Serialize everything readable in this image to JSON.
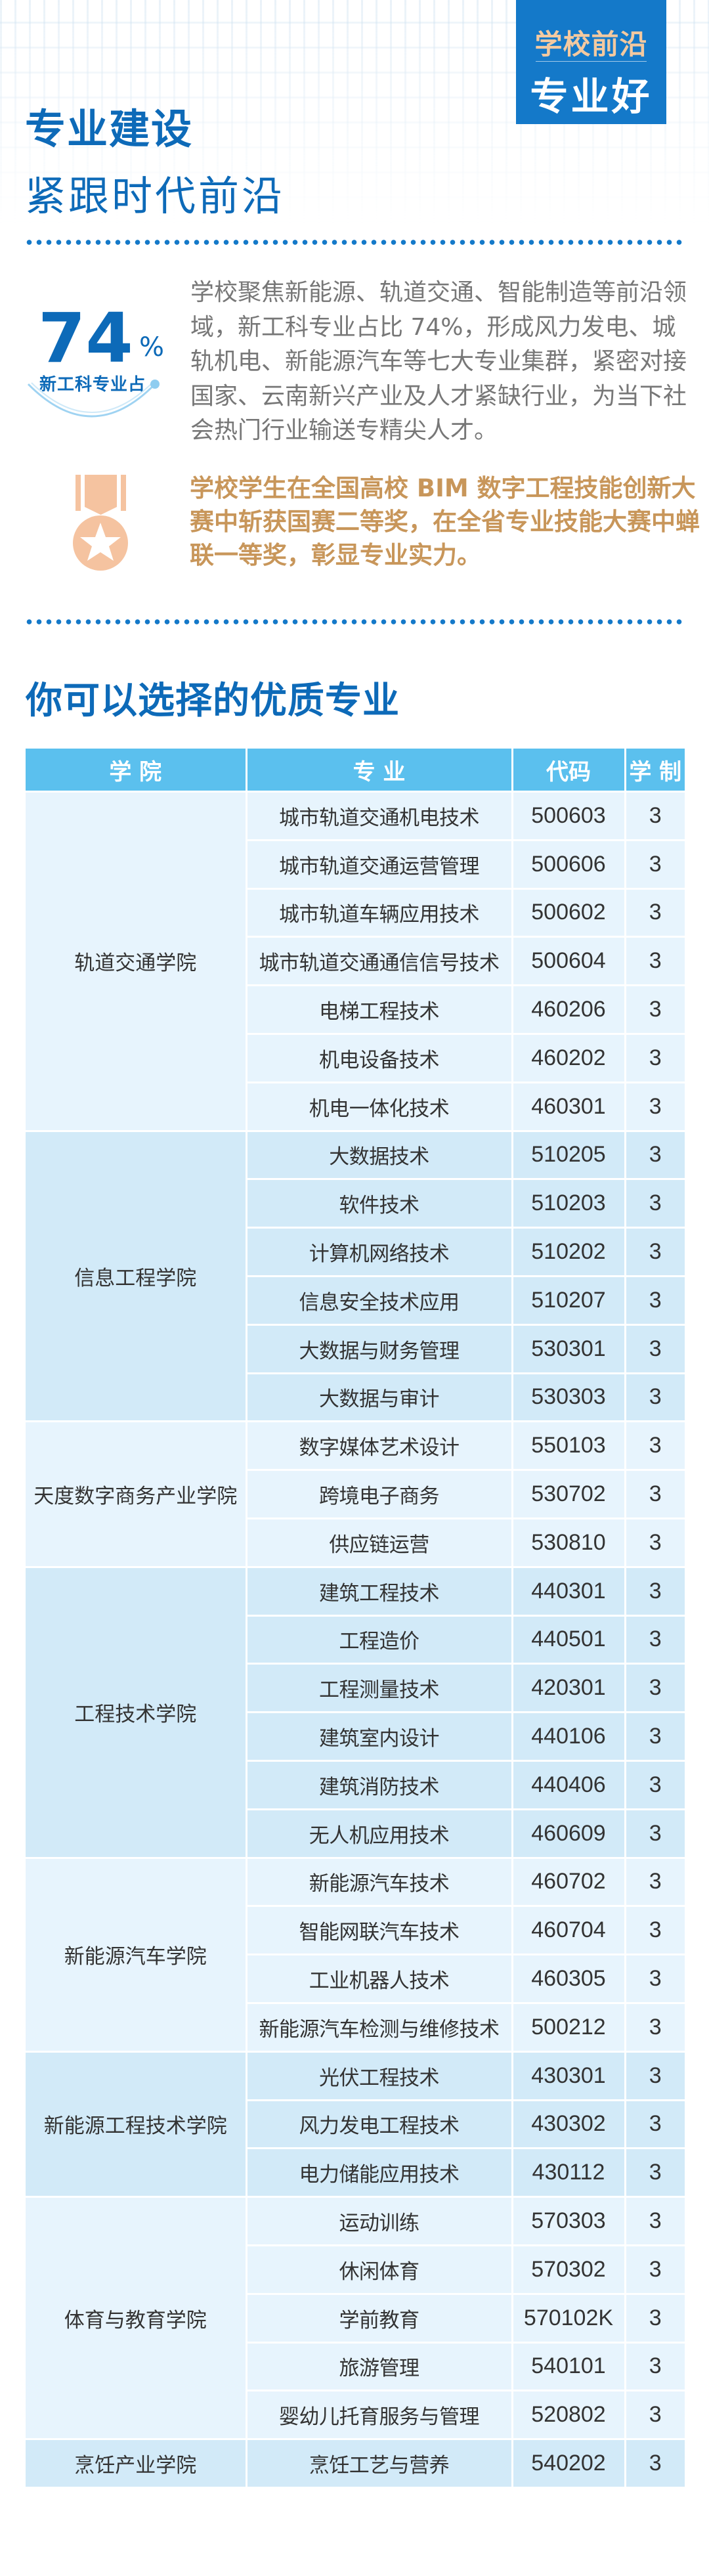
{
  "badge": {
    "line1": "学校前沿",
    "line2": "专业好"
  },
  "section": {
    "title": "专业建设",
    "subtitle": "紧跟时代前沿"
  },
  "stat": {
    "value": "74",
    "unit": "%",
    "label": "新工科专业占"
  },
  "intro_paragraph": "学校聚焦新能源、轨道交通、智能制造等前沿领域，新工科专业占比 74%，形成风力发电、城轨机电、新能源汽车等七大专业集群，紧密对接国家、云南新兴产业及人才紧缺行业，为当下社会热门行业输送专精尖人才。",
  "award_paragraph": "学校学生在全国高校 BIM 数字工程技能创新大赛中斩获国赛二等奖，在全省专业技能大赛中蝉联一等奖，彰显专业实力。",
  "colors": {
    "primary": "#0d6ab8",
    "badge": "#1479c9",
    "accent": "#c8965a",
    "table_header": "#5bc0ee",
    "row_light": "#e7f4fd",
    "row_dark": "#d2eaf8"
  },
  "icons": {
    "medal": "medal-icon"
  },
  "majors_heading": "你可以选择的优质专业",
  "table": {
    "headers": [
      "学 院",
      "专 业",
      "代码",
      "学 制"
    ],
    "colleges": [
      {
        "name": "轨道交通学院",
        "majors": [
          {
            "name": "城市轨道交通机电技术",
            "code": "500603",
            "years": "3"
          },
          {
            "name": "城市轨道交通运营管理",
            "code": "500606",
            "years": "3"
          },
          {
            "name": "城市轨道车辆应用技术",
            "code": "500602",
            "years": "3"
          },
          {
            "name": "城市轨道交通通信信号技术",
            "code": "500604",
            "years": "3"
          },
          {
            "name": "电梯工程技术",
            "code": "460206",
            "years": "3"
          },
          {
            "name": "机电设备技术",
            "code": "460202",
            "years": "3"
          },
          {
            "name": "机电一体化技术",
            "code": "460301",
            "years": "3"
          }
        ]
      },
      {
        "name": "信息工程学院",
        "majors": [
          {
            "name": "大数据技术",
            "code": "510205",
            "years": "3"
          },
          {
            "name": "软件技术",
            "code": "510203",
            "years": "3"
          },
          {
            "name": "计算机网络技术",
            "code": "510202",
            "years": "3"
          },
          {
            "name": "信息安全技术应用",
            "code": "510207",
            "years": "3"
          },
          {
            "name": "大数据与财务管理",
            "code": "530301",
            "years": "3"
          },
          {
            "name": "大数据与审计",
            "code": "530303",
            "years": "3"
          }
        ]
      },
      {
        "name": "天度数字商务产业学院",
        "majors": [
          {
            "name": "数字媒体艺术设计",
            "code": "550103",
            "years": "3"
          },
          {
            "name": "跨境电子商务",
            "code": "530702",
            "years": "3"
          },
          {
            "name": "供应链运营",
            "code": "530810",
            "years": "3"
          }
        ]
      },
      {
        "name": "工程技术学院",
        "majors": [
          {
            "name": "建筑工程技术",
            "code": "440301",
            "years": "3"
          },
          {
            "name": "工程造价",
            "code": "440501",
            "years": "3"
          },
          {
            "name": "工程测量技术",
            "code": "420301",
            "years": "3"
          },
          {
            "name": "建筑室内设计",
            "code": "440106",
            "years": "3"
          },
          {
            "name": "建筑消防技术",
            "code": "440406",
            "years": "3"
          },
          {
            "name": "无人机应用技术",
            "code": "460609",
            "years": "3"
          }
        ]
      },
      {
        "name": "新能源汽车学院",
        "majors": [
          {
            "name": "新能源汽车技术",
            "code": "460702",
            "years": "3"
          },
          {
            "name": "智能网联汽车技术",
            "code": "460704",
            "years": "3"
          },
          {
            "name": "工业机器人技术",
            "code": "460305",
            "years": "3"
          },
          {
            "name": "新能源汽车检测与维修技术",
            "code": "500212",
            "years": "3"
          }
        ]
      },
      {
        "name": "新能源工程技术学院",
        "majors": [
          {
            "name": "光伏工程技术",
            "code": "430301",
            "years": "3"
          },
          {
            "name": "风力发电工程技术",
            "code": "430302",
            "years": "3"
          },
          {
            "name": "电力储能应用技术",
            "code": "430112",
            "years": "3"
          }
        ]
      },
      {
        "name": "体育与教育学院",
        "majors": [
          {
            "name": "运动训练",
            "code": "570303",
            "years": "3"
          },
          {
            "name": "休闲体育",
            "code": "570302",
            "years": "3"
          },
          {
            "name": "学前教育",
            "code": "570102K",
            "years": "3"
          },
          {
            "name": "旅游管理",
            "code": "540101",
            "years": "3"
          },
          {
            "name": "婴幼儿托育服务与管理",
            "code": "520802",
            "years": "3"
          }
        ]
      },
      {
        "name": "烹饪产业学院",
        "majors": [
          {
            "name": "烹饪工艺与营养",
            "code": "540202",
            "years": "3"
          }
        ]
      }
    ]
  }
}
